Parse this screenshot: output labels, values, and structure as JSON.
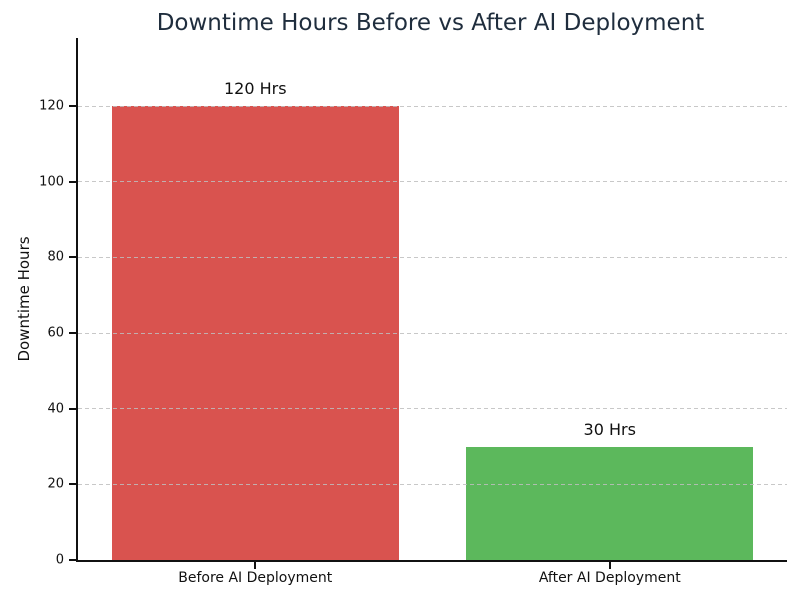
{
  "chart_data": {
    "type": "bar",
    "title": "Downtime Hours Before vs After AI Deployment",
    "title_color": "#1f2d3d",
    "ylabel": "Downtime Hours",
    "xlabel": "",
    "categories": [
      "Before AI Deployment",
      "After AI Deployment"
    ],
    "values": [
      120,
      30
    ],
    "bar_labels": [
      "120 Hrs",
      "30 Hrs"
    ],
    "bar_colors": [
      "#d9534f",
      "#5cb85c"
    ],
    "yticks": [
      0,
      20,
      40,
      60,
      80,
      100,
      120
    ],
    "ylim": [
      0,
      138
    ],
    "xlim": [
      -0.5,
      1.5
    ],
    "bar_width_fraction": 0.81,
    "grid": "horizontal dashed, light gray, drawn above bars",
    "legend": "none",
    "background_color": "#ffffff"
  }
}
